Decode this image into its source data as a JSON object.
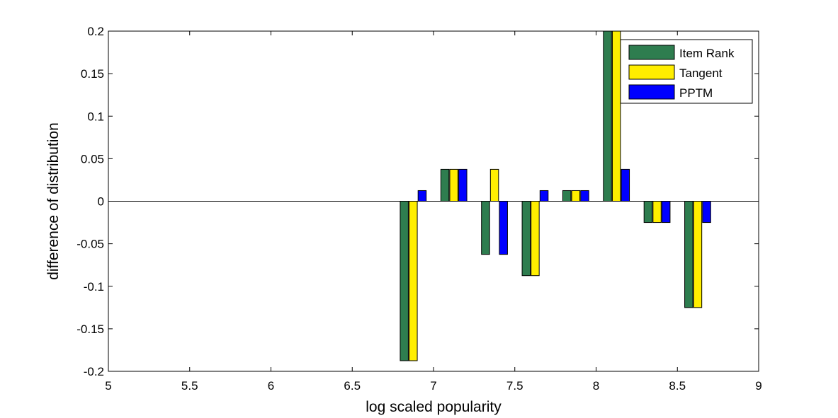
{
  "chart_data": {
    "type": "bar",
    "xlabel": "log scaled popularity",
    "ylabel": "difference of distribution",
    "xlim": [
      5,
      9
    ],
    "ylim": [
      -0.2,
      0.2
    ],
    "xticks": [
      "5",
      "5.5",
      "6",
      "6.5",
      "7",
      "7.5",
      "8",
      "8.5",
      "9"
    ],
    "yticks": [
      "-0.2",
      "-0.15",
      "-0.1",
      "-0.05",
      "0",
      "0.05",
      "0.1",
      "0.15",
      "0.2"
    ],
    "legend_position": "top-right",
    "x": [
      6.875,
      7.125,
      7.375,
      7.625,
      7.875,
      8.125,
      8.375,
      8.625
    ],
    "series": [
      {
        "name": "Item Rank",
        "color": "#2e7d4f",
        "values": [
          -0.1875,
          0.0375,
          -0.0625,
          -0.0875,
          0.0125,
          0.2,
          -0.025,
          -0.125
        ]
      },
      {
        "name": "Tangent",
        "color": "#ffee00",
        "values": [
          -0.1875,
          0.0375,
          0.0375,
          -0.0875,
          0.0125,
          0.2,
          -0.025,
          -0.125
        ]
      },
      {
        "name": "PPTM",
        "color": "#0000ff",
        "values": [
          0.0125,
          0.0375,
          -0.0625,
          0.0125,
          0.0125,
          0.0375,
          -0.025,
          -0.025
        ]
      }
    ]
  }
}
